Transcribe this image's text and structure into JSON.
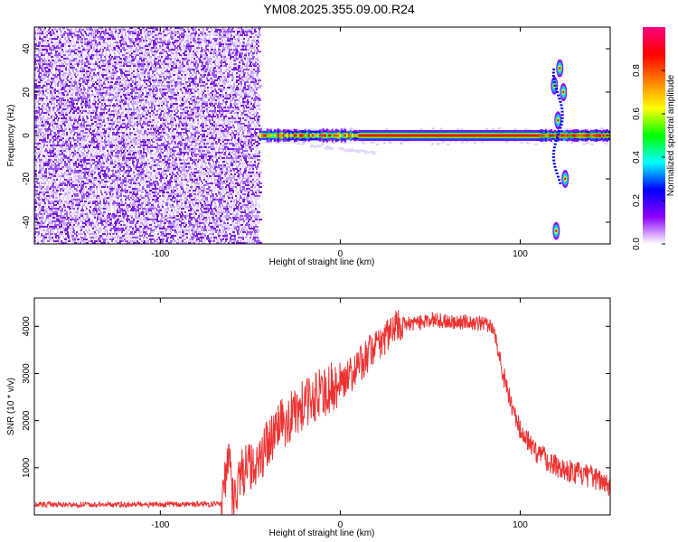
{
  "title": "YM08.2025.355.09.00.R24",
  "chart_data": [
    {
      "type": "heatmap",
      "title": "",
      "xlabel": "Height of straight line (km)",
      "ylabel": "Frequency (Hz)",
      "xlim": [
        -170,
        150
      ],
      "ylim": [
        -50,
        50
      ],
      "xticks": [
        -100,
        0,
        100
      ],
      "yticks": [
        -40,
        -20,
        0,
        20,
        40
      ],
      "grid": false,
      "noise_region_x": [
        -170,
        -45
      ],
      "signal_band": {
        "x": [
          -45,
          150
        ],
        "frequency": 0
      },
      "features": [
        {
          "x": 122,
          "frequency": 31
        },
        {
          "x": 124,
          "frequency": 20
        },
        {
          "x": 119,
          "frequency": 23
        },
        {
          "x": 121,
          "frequency": 7
        },
        {
          "x": 125,
          "frequency": -20
        },
        {
          "x": 120,
          "frequency": -44
        }
      ],
      "colorbar": {
        "label": "Normalized spectral amplitude",
        "range": [
          0,
          1
        ],
        "ticks": [
          "0.0",
          "0.2",
          "0.4",
          "0.6",
          "0.8"
        ],
        "colors": [
          "#ffffff",
          "#8b00ff",
          "#0000ff",
          "#00ffff",
          "#00ff00",
          "#ffff00",
          "#ff8000",
          "#ff0000",
          "#ff0080"
        ]
      }
    },
    {
      "type": "line",
      "title": "",
      "xlabel": "Height of straight line (km)",
      "ylabel": "SNR (10 * v/v)",
      "xlim": [
        -170,
        150
      ],
      "ylim": [
        0,
        4600
      ],
      "xticks": [
        -100,
        0,
        100
      ],
      "yticks": [
        1000,
        2000,
        3000,
        4000
      ],
      "grid": false,
      "color": "#ee3333",
      "series": [
        {
          "x": [
            -170,
            -100,
            -66,
            -62,
            -60,
            -55,
            -50,
            -45,
            -40,
            -35,
            -30,
            -20,
            -10,
            0,
            10,
            20,
            30,
            35,
            40,
            50,
            60,
            70,
            80,
            85,
            87,
            90,
            95,
            100,
            110,
            120,
            130,
            140,
            150
          ],
          "values": [
            220,
            220,
            230,
            1450,
            350,
            900,
            1000,
            1250,
            1500,
            1850,
            2000,
            2350,
            2600,
            2800,
            3150,
            3600,
            3950,
            4050,
            4050,
            4150,
            4100,
            4100,
            4050,
            4000,
            3600,
            3100,
            2300,
            1800,
            1300,
            1050,
            900,
            800,
            650
          ]
        }
      ]
    }
  ]
}
